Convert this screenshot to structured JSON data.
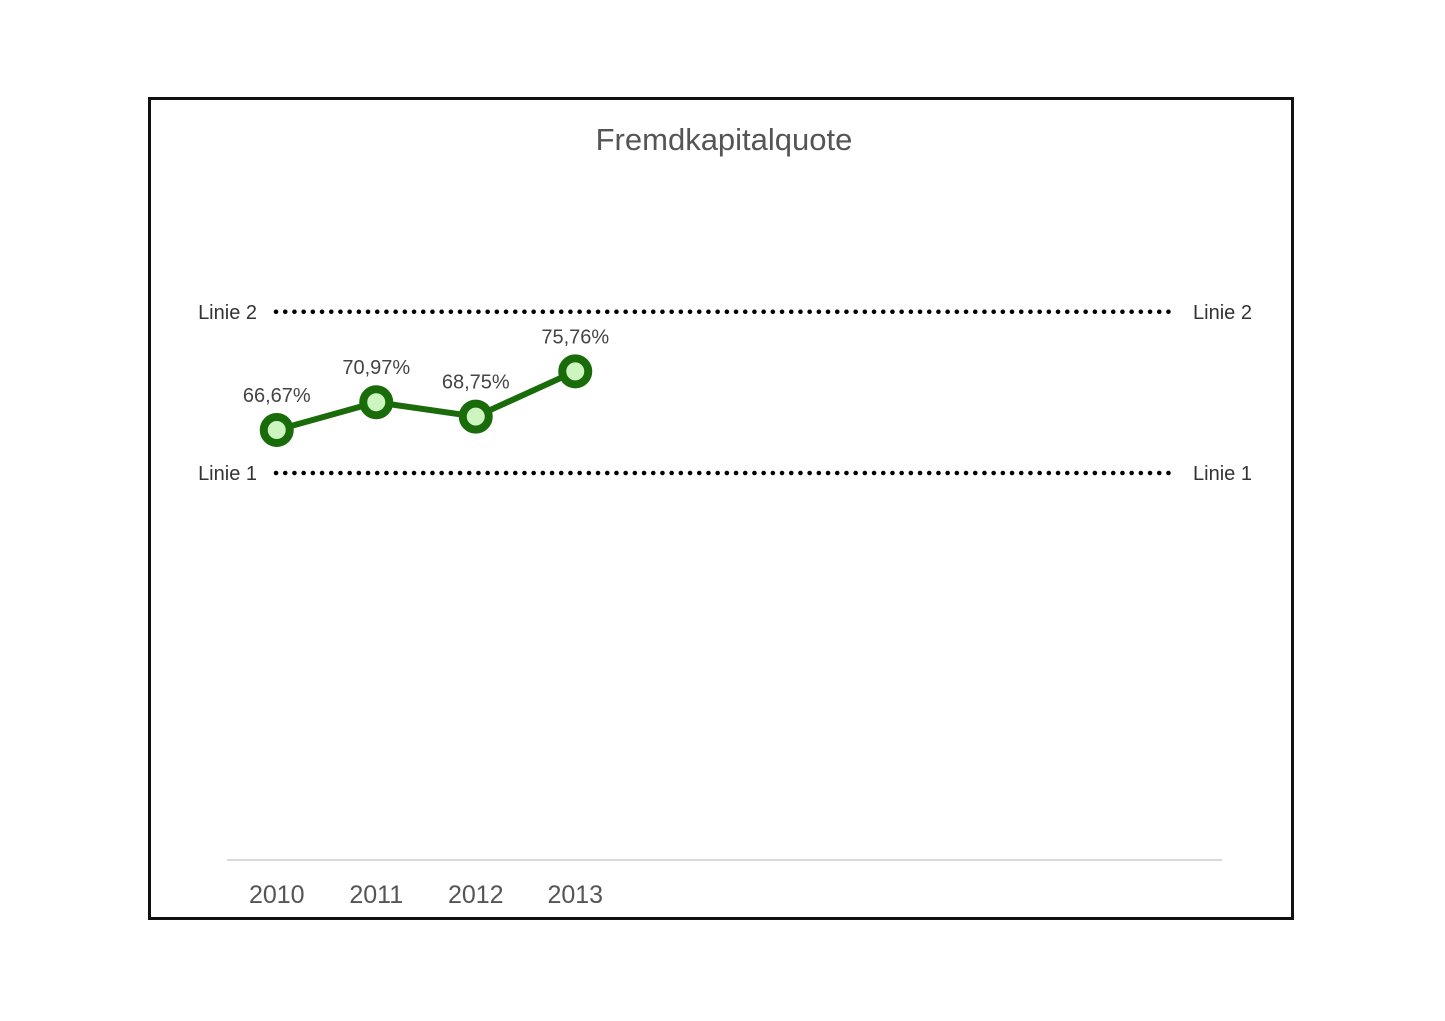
{
  "chart_data": {
    "type": "line",
    "title": "Fremdkapitalquote",
    "categories": [
      "2010",
      "2011",
      "2012",
      "2013"
    ],
    "series": [
      {
        "values": [
          66.67,
          70.97,
          68.75,
          75.76
        ],
        "labels": [
          "66,67%",
          "70,97%",
          "68,75%",
          "75,76%"
        ],
        "line_color": "#1a6b0a",
        "marker_fill": "#ccf5c0"
      }
    ],
    "reference_lines": [
      {
        "label": "Linie 1",
        "value": 60,
        "style": "dotted",
        "color": "#000000"
      },
      {
        "label": "Linie 2",
        "value": 85,
        "style": "dotted",
        "color": "#000000"
      }
    ],
    "x_slots": 10,
    "ylim": [
      0,
      100
    ],
    "grid": false,
    "legend": "none",
    "baseline_color": "#d9d9d9"
  }
}
